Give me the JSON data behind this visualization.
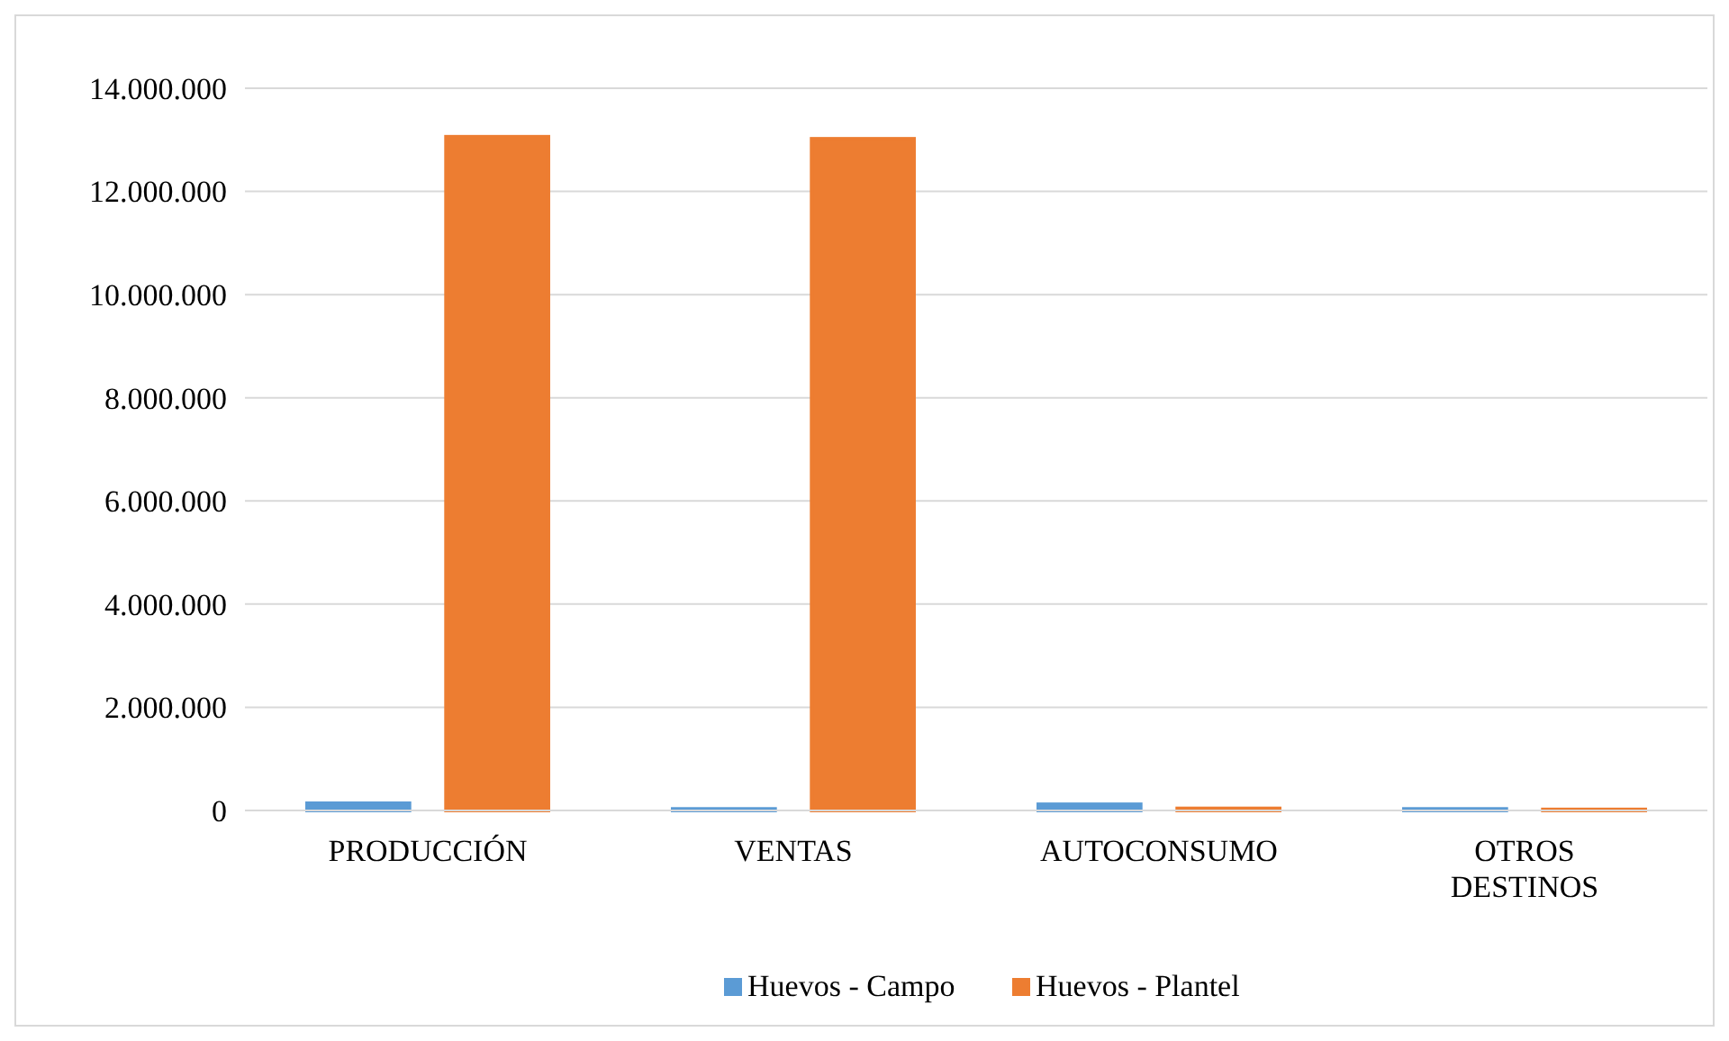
{
  "chart_data": {
    "type": "bar",
    "categories": [
      "PRODUCCIÓN",
      "VENTAS",
      "AUTOCONSUMO",
      "OTROS DESTINOS"
    ],
    "series": [
      {
        "name": "Huevos - Campo",
        "color": "#5b9bd5",
        "values": [
          140000,
          30000,
          120000,
          30000
        ]
      },
      {
        "name": "Huevos - Plantel",
        "color": "#ed7d31",
        "values": [
          13060000,
          13020000,
          40000,
          20000
        ]
      }
    ],
    "ylim": [
      0,
      14000000
    ],
    "yticks": [
      {
        "value": 0,
        "label": "0"
      },
      {
        "value": 2000000,
        "label": "2.000.000"
      },
      {
        "value": 4000000,
        "label": "4.000.000"
      },
      {
        "value": 6000000,
        "label": "6.000.000"
      },
      {
        "value": 8000000,
        "label": "8.000.000"
      },
      {
        "value": 10000000,
        "label": "10.000.000"
      },
      {
        "value": 12000000,
        "label": "12.000.000"
      },
      {
        "value": 14000000,
        "label": "14.000.000"
      }
    ],
    "grid": "y",
    "legend": "bottom"
  }
}
